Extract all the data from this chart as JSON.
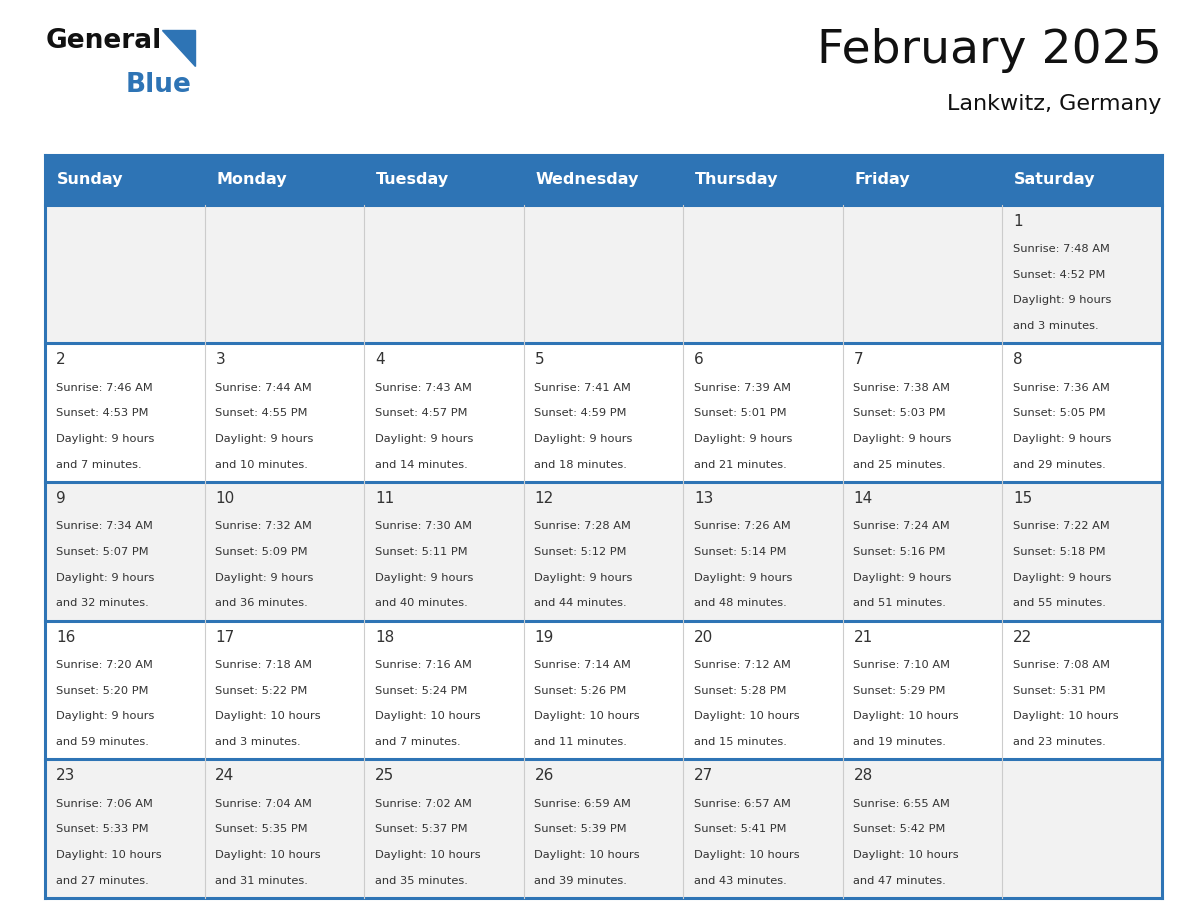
{
  "title": "February 2025",
  "subtitle": "Lankwitz, Germany",
  "header_color": "#2E74B5",
  "header_text_color": "#FFFFFF",
  "bg_color": "#FFFFFF",
  "row_color_odd": "#F2F2F2",
  "row_color_even": "#FFFFFF",
  "border_color": "#2E74B5",
  "cell_border_color": "#BBBBBB",
  "text_color": "#333333",
  "days_of_week": [
    "Sunday",
    "Monday",
    "Tuesday",
    "Wednesday",
    "Thursday",
    "Friday",
    "Saturday"
  ],
  "calendar_data": [
    [
      null,
      null,
      null,
      null,
      null,
      null,
      {
        "day": "1",
        "sunrise": "7:48 AM",
        "sunset": "4:52 PM",
        "daylight_line1": "Daylight: 9 hours",
        "daylight_line2": "and 3 minutes."
      }
    ],
    [
      {
        "day": "2",
        "sunrise": "7:46 AM",
        "sunset": "4:53 PM",
        "daylight_line1": "Daylight: 9 hours",
        "daylight_line2": "and 7 minutes."
      },
      {
        "day": "3",
        "sunrise": "7:44 AM",
        "sunset": "4:55 PM",
        "daylight_line1": "Daylight: 9 hours",
        "daylight_line2": "and 10 minutes."
      },
      {
        "day": "4",
        "sunrise": "7:43 AM",
        "sunset": "4:57 PM",
        "daylight_line1": "Daylight: 9 hours",
        "daylight_line2": "and 14 minutes."
      },
      {
        "day": "5",
        "sunrise": "7:41 AM",
        "sunset": "4:59 PM",
        "daylight_line1": "Daylight: 9 hours",
        "daylight_line2": "and 18 minutes."
      },
      {
        "day": "6",
        "sunrise": "7:39 AM",
        "sunset": "5:01 PM",
        "daylight_line1": "Daylight: 9 hours",
        "daylight_line2": "and 21 minutes."
      },
      {
        "day": "7",
        "sunrise": "7:38 AM",
        "sunset": "5:03 PM",
        "daylight_line1": "Daylight: 9 hours",
        "daylight_line2": "and 25 minutes."
      },
      {
        "day": "8",
        "sunrise": "7:36 AM",
        "sunset": "5:05 PM",
        "daylight_line1": "Daylight: 9 hours",
        "daylight_line2": "and 29 minutes."
      }
    ],
    [
      {
        "day": "9",
        "sunrise": "7:34 AM",
        "sunset": "5:07 PM",
        "daylight_line1": "Daylight: 9 hours",
        "daylight_line2": "and 32 minutes."
      },
      {
        "day": "10",
        "sunrise": "7:32 AM",
        "sunset": "5:09 PM",
        "daylight_line1": "Daylight: 9 hours",
        "daylight_line2": "and 36 minutes."
      },
      {
        "day": "11",
        "sunrise": "7:30 AM",
        "sunset": "5:11 PM",
        "daylight_line1": "Daylight: 9 hours",
        "daylight_line2": "and 40 minutes."
      },
      {
        "day": "12",
        "sunrise": "7:28 AM",
        "sunset": "5:12 PM",
        "daylight_line1": "Daylight: 9 hours",
        "daylight_line2": "and 44 minutes."
      },
      {
        "day": "13",
        "sunrise": "7:26 AM",
        "sunset": "5:14 PM",
        "daylight_line1": "Daylight: 9 hours",
        "daylight_line2": "and 48 minutes."
      },
      {
        "day": "14",
        "sunrise": "7:24 AM",
        "sunset": "5:16 PM",
        "daylight_line1": "Daylight: 9 hours",
        "daylight_line2": "and 51 minutes."
      },
      {
        "day": "15",
        "sunrise": "7:22 AM",
        "sunset": "5:18 PM",
        "daylight_line1": "Daylight: 9 hours",
        "daylight_line2": "and 55 minutes."
      }
    ],
    [
      {
        "day": "16",
        "sunrise": "7:20 AM",
        "sunset": "5:20 PM",
        "daylight_line1": "Daylight: 9 hours",
        "daylight_line2": "and 59 minutes."
      },
      {
        "day": "17",
        "sunrise": "7:18 AM",
        "sunset": "5:22 PM",
        "daylight_line1": "Daylight: 10 hours",
        "daylight_line2": "and 3 minutes."
      },
      {
        "day": "18",
        "sunrise": "7:16 AM",
        "sunset": "5:24 PM",
        "daylight_line1": "Daylight: 10 hours",
        "daylight_line2": "and 7 minutes."
      },
      {
        "day": "19",
        "sunrise": "7:14 AM",
        "sunset": "5:26 PM",
        "daylight_line1": "Daylight: 10 hours",
        "daylight_line2": "and 11 minutes."
      },
      {
        "day": "20",
        "sunrise": "7:12 AM",
        "sunset": "5:28 PM",
        "daylight_line1": "Daylight: 10 hours",
        "daylight_line2": "and 15 minutes."
      },
      {
        "day": "21",
        "sunrise": "7:10 AM",
        "sunset": "5:29 PM",
        "daylight_line1": "Daylight: 10 hours",
        "daylight_line2": "and 19 minutes."
      },
      {
        "day": "22",
        "sunrise": "7:08 AM",
        "sunset": "5:31 PM",
        "daylight_line1": "Daylight: 10 hours",
        "daylight_line2": "and 23 minutes."
      }
    ],
    [
      {
        "day": "23",
        "sunrise": "7:06 AM",
        "sunset": "5:33 PM",
        "daylight_line1": "Daylight: 10 hours",
        "daylight_line2": "and 27 minutes."
      },
      {
        "day": "24",
        "sunrise": "7:04 AM",
        "sunset": "5:35 PM",
        "daylight_line1": "Daylight: 10 hours",
        "daylight_line2": "and 31 minutes."
      },
      {
        "day": "25",
        "sunrise": "7:02 AM",
        "sunset": "5:37 PM",
        "daylight_line1": "Daylight: 10 hours",
        "daylight_line2": "and 35 minutes."
      },
      {
        "day": "26",
        "sunrise": "6:59 AM",
        "sunset": "5:39 PM",
        "daylight_line1": "Daylight: 10 hours",
        "daylight_line2": "and 39 minutes."
      },
      {
        "day": "27",
        "sunrise": "6:57 AM",
        "sunset": "5:41 PM",
        "daylight_line1": "Daylight: 10 hours",
        "daylight_line2": "and 43 minutes."
      },
      {
        "day": "28",
        "sunrise": "6:55 AM",
        "sunset": "5:42 PM",
        "daylight_line1": "Daylight: 10 hours",
        "daylight_line2": "and 47 minutes."
      },
      null
    ]
  ],
  "logo_general_color": "#111111",
  "logo_blue_color": "#2E74B5",
  "logo_triangle_color": "#2E74B5"
}
